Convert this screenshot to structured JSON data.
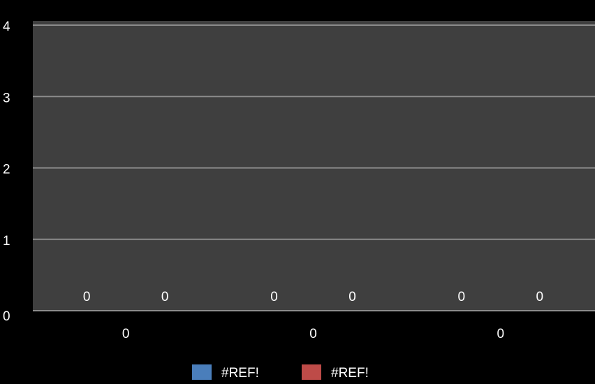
{
  "chart_data": {
    "type": "bar",
    "categories": [
      "0",
      "0",
      "0"
    ],
    "series": [
      {
        "name": "#REF!",
        "values": [
          0,
          0,
          0
        ],
        "color": "#4a7ebb"
      },
      {
        "name": "#REF!",
        "values": [
          0,
          0,
          0
        ],
        "color": "#be4b48"
      }
    ],
    "ylim": [
      0,
      4
    ],
    "yticks": [
      "0",
      "1",
      "2",
      "3",
      "4"
    ],
    "data_labels": true,
    "grid": true,
    "legend_position": "bottom",
    "plot_background": "#3f3f3f",
    "page_background": "#000000"
  }
}
